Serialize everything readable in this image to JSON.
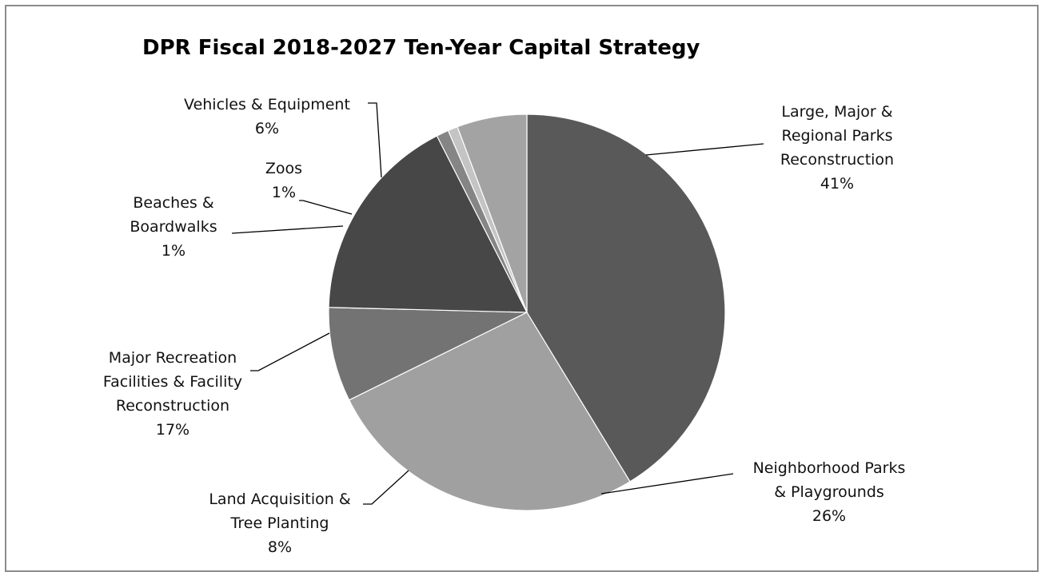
{
  "chart_data": {
    "type": "pie",
    "title": "DPR Fiscal 2018-2027 Ten-Year Capital Strategy",
    "start_angle": "12 o'clock",
    "direction": "clockwise",
    "legend": "none (data labels with leader lines)",
    "slices": [
      {
        "id": "large-parks",
        "lines": [
          "Large, Major &",
          "Regional Parks",
          "Reconstruction"
        ],
        "percent_label": "41%",
        "value": 41.3,
        "color": "#595959"
      },
      {
        "id": "neighborhood",
        "lines": [
          "Neighborhood Parks",
          "& Playgrounds"
        ],
        "percent_label": "26%",
        "value": 26.4,
        "color": "#a0a0a0"
      },
      {
        "id": "land-acq",
        "lines": [
          "Land Acquisition &",
          "Tree Planting"
        ],
        "percent_label": "8%",
        "value": 7.7,
        "color": "#737373"
      },
      {
        "id": "major-rec",
        "lines": [
          "Major Recreation",
          "Facilities & Facility",
          "Reconstruction"
        ],
        "percent_label": "17%",
        "value": 17.1,
        "color": "#474747"
      },
      {
        "id": "beaches",
        "lines": [
          "Beaches &",
          "Boardwalks"
        ],
        "percent_label": "1%",
        "value": 1.0,
        "color": "#858585"
      },
      {
        "id": "zoos",
        "lines": [
          "Zoos"
        ],
        "percent_label": "1%",
        "value": 0.8,
        "color": "#c4c4c4"
      },
      {
        "id": "vehicles",
        "lines": [
          "Vehicles & Equipment"
        ],
        "percent_label": "6%",
        "value": 5.7,
        "color": "#a3a3a3"
      }
    ]
  }
}
